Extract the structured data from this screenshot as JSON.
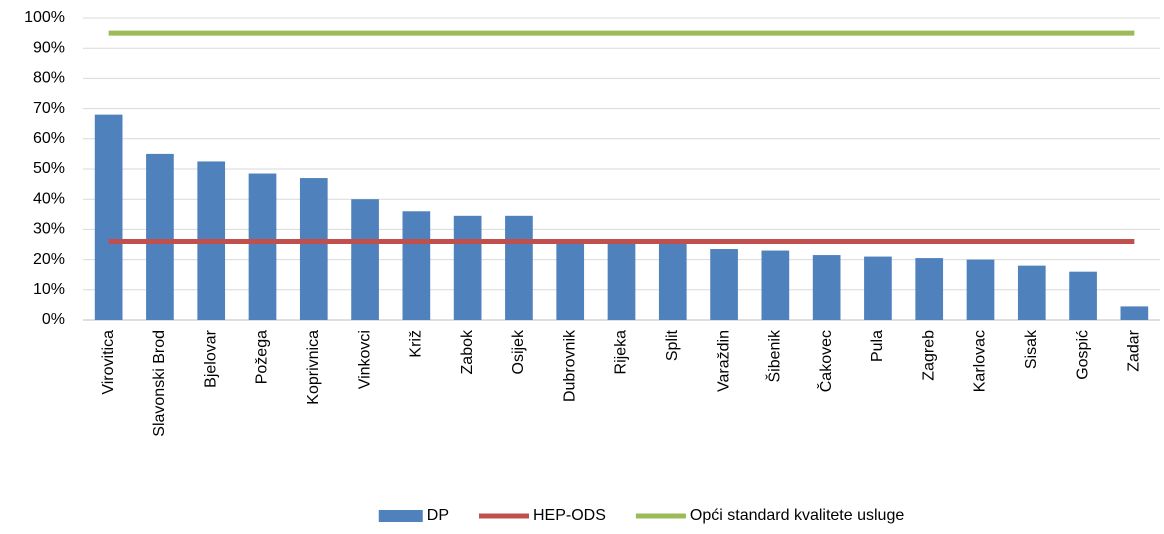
{
  "chart_data": {
    "type": "bar",
    "categories": [
      "Virovitica",
      "Slavonski Brod",
      "Bjelovar",
      "Požega",
      "Koprivnica",
      "Vinkovci",
      "Križ",
      "Zabok",
      "Osijek",
      "Dubrovnik",
      "Rijeka",
      "Split",
      "Varaždin",
      "Šibenik",
      "Čakovec",
      "Pula",
      "Zagreb",
      "Karlovac",
      "Sisak",
      "Gospić",
      "Zadar"
    ],
    "series": [
      {
        "name": "DP",
        "type": "bar",
        "color": "#4f81bd",
        "values": [
          68,
          55,
          52.5,
          48.5,
          47,
          40,
          36,
          34.5,
          34.5,
          26,
          26,
          26,
          23.5,
          23,
          21.5,
          21,
          20.5,
          20,
          18,
          16,
          4.5
        ]
      },
      {
        "name": "HEP-ODS",
        "type": "line",
        "color": "#c0504d",
        "values": [
          26,
          26,
          26,
          26,
          26,
          26,
          26,
          26,
          26,
          26,
          26,
          26,
          26,
          26,
          26,
          26,
          26,
          26,
          26,
          26,
          26
        ]
      },
      {
        "name": "Opći standard kvalitete usluge",
        "type": "line",
        "color": "#9bbb59",
        "values": [
          95,
          95,
          95,
          95,
          95,
          95,
          95,
          95,
          95,
          95,
          95,
          95,
          95,
          95,
          95,
          95,
          95,
          95,
          95,
          95,
          95
        ]
      }
    ],
    "ylim": [
      0,
      100
    ],
    "yticks": [
      {
        "value": 0,
        "label": "0%"
      },
      {
        "value": 10,
        "label": "10%"
      },
      {
        "value": 20,
        "label": "20%"
      },
      {
        "value": 30,
        "label": "30%"
      },
      {
        "value": 40,
        "label": "40%"
      },
      {
        "value": 50,
        "label": "50%"
      },
      {
        "value": 60,
        "label": "60%"
      },
      {
        "value": 70,
        "label": "70%"
      },
      {
        "value": 80,
        "label": "80%"
      },
      {
        "value": 90,
        "label": "90%"
      },
      {
        "value": 100,
        "label": "100%"
      }
    ],
    "grid": true,
    "legend": "bottom"
  }
}
